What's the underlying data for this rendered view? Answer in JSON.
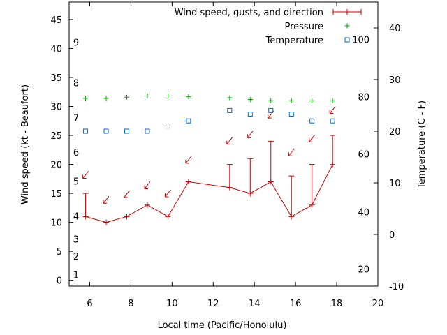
{
  "chart_data": {
    "type": "line",
    "xlabel": "Local time (Pacific/Honolulu)",
    "ylabel_left": "Wind speed (kt - Beaufort)",
    "ylabel_right": "Temperature (C - F)",
    "xlim": [
      5,
      20
    ],
    "ylim_left": [
      -1,
      48
    ],
    "ylim_right_celsius": [
      -10,
      45
    ],
    "x_ticks": [
      6,
      8,
      10,
      12,
      14,
      16,
      18,
      20
    ],
    "y_ticks_left": [
      0,
      5,
      10,
      15,
      20,
      25,
      30,
      35,
      40,
      45
    ],
    "y_ticks_right_celsius": [
      -10,
      0,
      10,
      20,
      30,
      40
    ],
    "beaufort_labels": [
      {
        "label": "1",
        "kt": 1
      },
      {
        "label": "2",
        "kt": 4.2
      },
      {
        "label": "3",
        "kt": 7.1
      },
      {
        "label": "4",
        "kt": 11.1
      },
      {
        "label": "5",
        "kt": 17.1
      },
      {
        "label": "6",
        "kt": 22.1
      },
      {
        "label": "7",
        "kt": 28.1
      },
      {
        "label": "8",
        "kt": 34.1
      },
      {
        "label": "9",
        "kt": 41.1
      }
    ],
    "fahrenheit_labels": [
      {
        "label": "20",
        "c": -6.7
      },
      {
        "label": "40",
        "c": 4.4
      },
      {
        "label": "60",
        "c": 15.6
      },
      {
        "label": "80",
        "c": 26.7
      },
      {
        "label": "100",
        "c": 37.8
      }
    ],
    "legend": [
      {
        "key": "wind",
        "label": "Wind speed, gusts, and direction",
        "color": "#cc0000"
      },
      {
        "key": "pressure",
        "label": "Pressure",
        "color": "#00aa00"
      },
      {
        "key": "temp",
        "label": "Temperature",
        "color": "#0066cc"
      }
    ],
    "legend_position": "top-right",
    "grid": false,
    "wind": {
      "x": [
        5.8,
        6.8,
        7.8,
        8.8,
        9.8,
        10.8,
        12.8,
        13.8,
        14.8,
        15.8,
        16.8,
        17.8
      ],
      "speed": [
        11,
        10,
        11,
        13,
        11,
        17,
        16,
        15,
        17,
        11,
        13,
        20
      ],
      "gust": [
        15,
        null,
        null,
        null,
        null,
        null,
        20,
        21,
        24,
        18,
        20,
        25
      ]
    },
    "direction_arrows": {
      "x": [
        5.8,
        6.8,
        7.8,
        8.8,
        9.8,
        10.8,
        12.8,
        13.8,
        14.8,
        15.8,
        16.8,
        17.8
      ],
      "kt": [
        18.2,
        13.9,
        14.9,
        16.4,
        15.0,
        20.8,
        24.1,
        25.2,
        28.6,
        22.1,
        24.5,
        29.4
      ]
    },
    "pressure": {
      "x": [
        5.8,
        6.8,
        7.8,
        8.8,
        9.8,
        10.8,
        12.8,
        13.8,
        14.8,
        15.8,
        16.8,
        17.8
      ],
      "kt": [
        31.4,
        31.4,
        31.6,
        31.8,
        31.8,
        31.7,
        31.5,
        31.2,
        31.0,
        31.0,
        31.0,
        31.0
      ]
    },
    "temperature": {
      "x": [
        5.8,
        6.8,
        7.8,
        8.8,
        9.8,
        10.8,
        12.8,
        13.8,
        14.8,
        15.8,
        16.8,
        17.8
      ],
      "c": [
        20,
        20,
        20,
        20,
        21,
        22,
        24,
        23.3,
        24,
        23.3,
        22,
        22
      ]
    }
  }
}
